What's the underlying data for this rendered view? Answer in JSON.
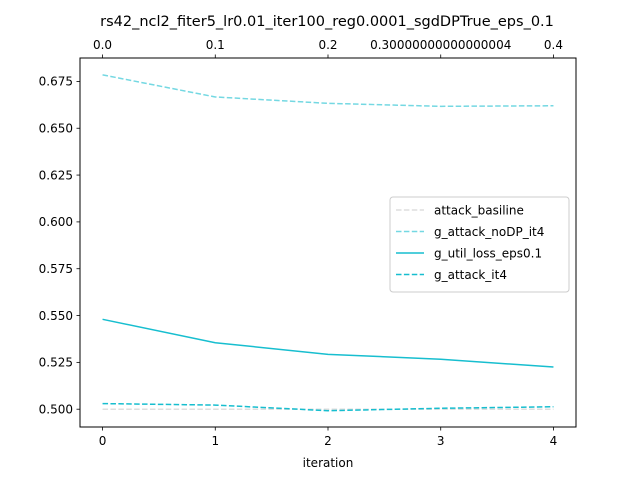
{
  "chart_data": {
    "type": "line",
    "title": "rs42_ncl2_fiter5_lr0.01_iter100_reg0.0001_sgdDPTrue_eps_0.1",
    "xlabel": "iteration",
    "ylabel": "",
    "x": [
      0,
      1,
      2,
      3,
      4
    ],
    "x_ticks": [
      "0",
      "1",
      "2",
      "3",
      "4"
    ],
    "x_top_ticks": [
      "0.0",
      "0.1",
      "0.2",
      "0.30000000000000004",
      "0.4"
    ],
    "xlim": [
      -0.2,
      4.2
    ],
    "ylim": [
      0.4905,
      0.6875
    ],
    "y_ticks": [
      0.5,
      0.525,
      0.55,
      0.575,
      0.6,
      0.625,
      0.65,
      0.675
    ],
    "y_tick_labels": [
      "0.500",
      "0.525",
      "0.550",
      "0.575",
      "0.600",
      "0.625",
      "0.650",
      "0.675"
    ],
    "grid": false,
    "legend_position": "center-right",
    "series": [
      {
        "name": "attack_basiline",
        "values": [
          0.5,
          0.5,
          0.5,
          0.5,
          0.5
        ],
        "color": "#d3d3d3",
        "style": "dashed",
        "opacity": 0.75
      },
      {
        "name": "g_attack_noDP_it4",
        "values": [
          0.6785,
          0.6667,
          0.6633,
          0.6617,
          0.662
        ],
        "color": "#17becf",
        "style": "dashed",
        "opacity": 0.6
      },
      {
        "name": "g_util_loss_eps0.1",
        "values": [
          0.548,
          0.5355,
          0.5293,
          0.5267,
          0.5225
        ],
        "color": "#17becf",
        "style": "solid",
        "opacity": 1
      },
      {
        "name": "g_attack_it4",
        "values": [
          0.503,
          0.5022,
          0.4992,
          0.5005,
          0.5013
        ],
        "color": "#17becf",
        "style": "dashed",
        "opacity": 1
      }
    ]
  }
}
